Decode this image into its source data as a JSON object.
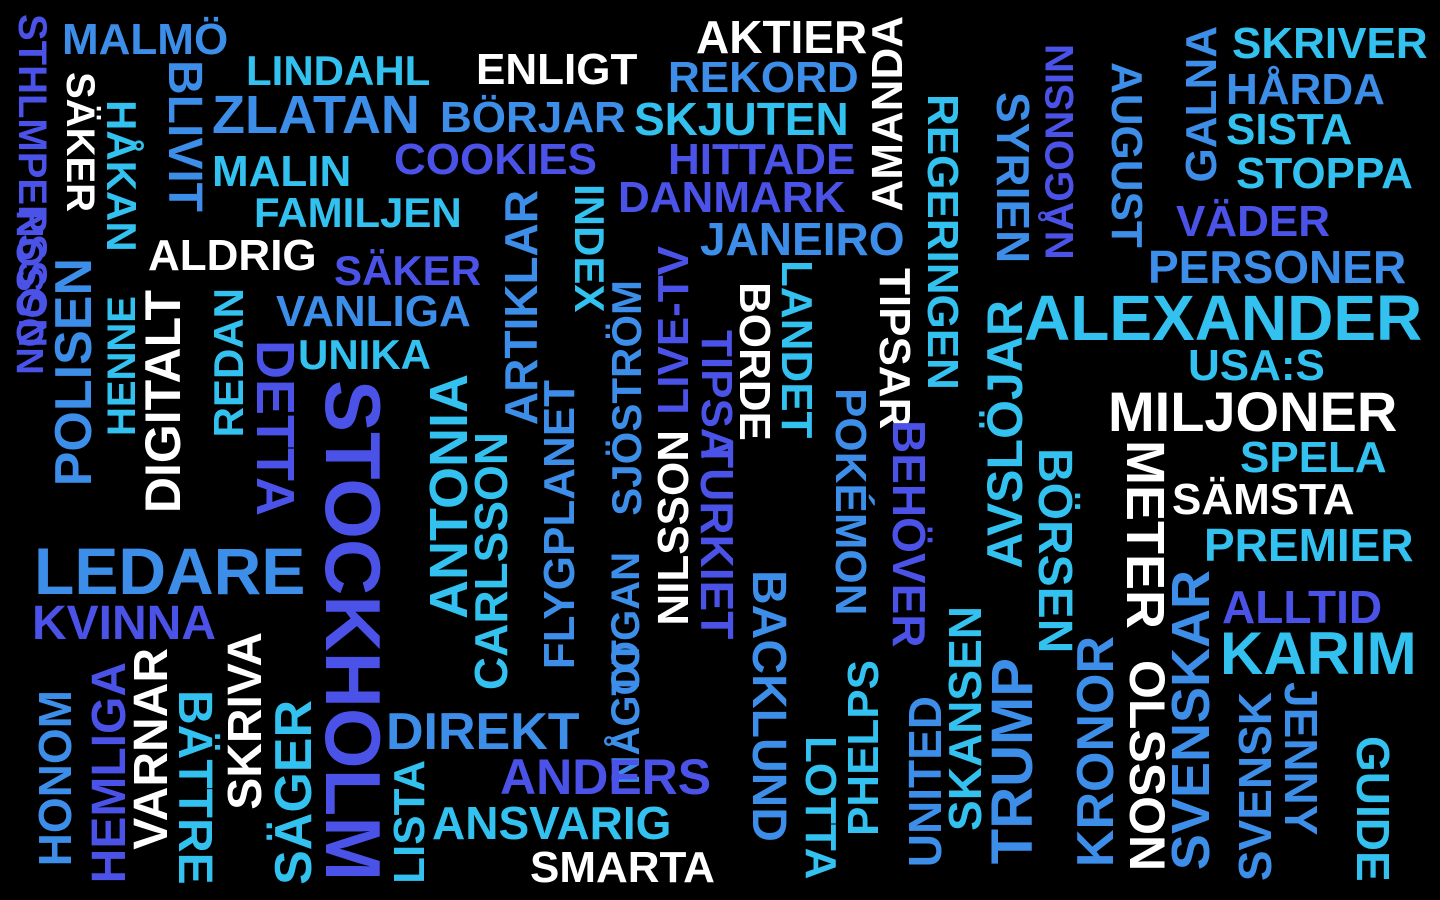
{
  "palette": {
    "background": "#000000",
    "white": "#ffffff",
    "cyan": "#33c2f0",
    "blue": "#3d8ee8",
    "indigo": "#4b52e8"
  },
  "words": [
    "MALMÖ",
    "STHLMPERSSON",
    "NOSSON",
    "SÄKER",
    "HÅKAN",
    "BLIVIT",
    "LINDAHL",
    "ZLATAN",
    "MALIN",
    "FAMILJEN",
    "ALDRIG",
    "HENNE",
    "POLISEN",
    "DIGITALT",
    "ENLIGT",
    "AKTIER",
    "AMANDA",
    "REKORD",
    "BÖRJAR",
    "SKJUTEN",
    "COOKIES",
    "HITTADE",
    "DANMARK",
    "JANEIRO",
    "SÄKER",
    "VANLIGA",
    "UNIKA",
    "REDAN",
    "DETTA",
    "STOCKHOLM",
    "ARTIKLAR",
    "ANTONIA",
    "CARLSSON",
    "INDEX",
    "FLYGPLANET",
    "SJÖSTRÖM",
    "TOGAN",
    "NÅGOT",
    "LIVE-TV",
    "NILSSON",
    "TIPSA",
    "TURKIET",
    "BORDE",
    "LANDET",
    "BACKLUND",
    "TIPSAR",
    "POKÉMON",
    "BEHÖVER",
    "REGERINGEN",
    "SYRIEN",
    "AVSLÖJAR",
    "NÅGONSIN",
    "AUGUST",
    "GALNA",
    "SKRIVER",
    "HÅRDA",
    "SISTA",
    "STOPPA",
    "VÄDER",
    "PERSONER",
    "ALEXANDER",
    "USA:S",
    "MILJONER",
    "SPELA",
    "SÄMSTA",
    "PREMIER",
    "METER",
    "BÖRSEN",
    "ALLTID",
    "KARIM",
    "LEDARE",
    "KVINNA",
    "HONOM",
    "HEMLIGA",
    "VARNAR",
    "BÄTTRE",
    "SKRIVA",
    "SÄGER",
    "LISTA",
    "DIREKT",
    "ANSVARIG",
    "ANDERS",
    "SMARTA",
    "LOTTA",
    "PHELPS",
    "UNITED",
    "SKANSEN",
    "TRUMP",
    "KRONOR",
    "OLSSON",
    "SVENSKAR",
    "SVENSK",
    "JENNY",
    "GUIDE"
  ]
}
